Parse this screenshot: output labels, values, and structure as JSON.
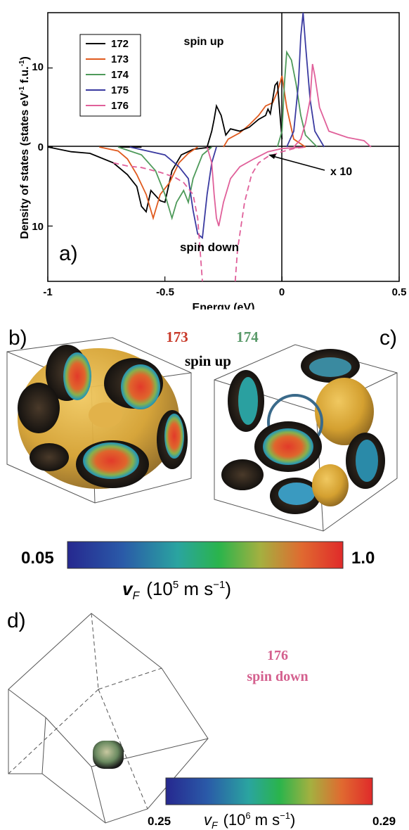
{
  "panel_a": {
    "label": "a)",
    "ylabel": "Density of states (states eV",
    "ylabel_sup1": "-1",
    "ylabel_mid": " f.u.",
    "ylabel_sup2": "-1",
    "ylabel_end": ")",
    "xlabel": "Energy (eV)",
    "annot_up": "spin up",
    "annot_down": "spin down",
    "annot_x10": "x 10"
  },
  "chart_data": {
    "type": "line",
    "xlabel": "Energy (eV)",
    "ylabel": "Density of states (states eV-1 f.u.-1)",
    "xlim": [
      -1,
      0.5
    ],
    "ylim": [
      -17,
      17
    ],
    "x_ticks": [
      "-1",
      "-0.5",
      "0",
      "0.5"
    ],
    "x_tick_values": [
      -1,
      -0.5,
      0,
      0.5
    ],
    "y_ticks": [
      "10",
      "0",
      "10"
    ],
    "y_tick_values": [
      10,
      0,
      -10
    ],
    "legend": "top-left",
    "colors": {
      "172": "#000000",
      "173": "#e05a1e",
      "174": "#4e9a5a",
      "175": "#3a3aa0",
      "176": "#e0609a"
    },
    "series": [
      {
        "name": "172",
        "color": "#000000",
        "dashed": false,
        "points": [
          [
            -1,
            0
          ],
          [
            -0.9,
            -0.6
          ],
          [
            -0.82,
            -0.8
          ],
          [
            -0.72,
            -2
          ],
          [
            -0.66,
            -3.5
          ],
          [
            -0.62,
            -5
          ],
          [
            -0.6,
            -7.5
          ],
          [
            -0.58,
            -8.2
          ],
          [
            -0.56,
            -5.5
          ],
          [
            -0.52,
            -6.8
          ],
          [
            -0.5,
            -7
          ],
          [
            -0.47,
            -3
          ],
          [
            -0.43,
            -1
          ],
          [
            -0.38,
            -0.3
          ],
          [
            -0.3,
            0
          ]
        ]
      },
      {
        "name": "172",
        "color": "#000000",
        "dashed": false,
        "points": [
          [
            -0.6,
            0
          ],
          [
            -0.7,
            0
          ]
        ]
      },
      {
        "name": "172",
        "color": "#000000",
        "dashed": false,
        "points": [
          [
            -0.6,
            0
          ],
          [
            -0.62,
            0
          ]
        ]
      },
      {
        "name": "173",
        "color": "#e05a1e",
        "dashed": false,
        "points": [
          [
            -0.78,
            0
          ],
          [
            -0.7,
            -0.5
          ],
          [
            -0.66,
            -1.5
          ],
          [
            -0.62,
            -3.5
          ],
          [
            -0.58,
            -6
          ],
          [
            -0.55,
            -9
          ],
          [
            -0.52,
            -6
          ],
          [
            -0.48,
            -4.5
          ],
          [
            -0.44,
            -2
          ],
          [
            -0.4,
            -0.8
          ],
          [
            -0.36,
            0
          ]
        ]
      },
      {
        "name": "174",
        "color": "#4e9a5a",
        "dashed": false,
        "points": [
          [
            -0.7,
            0
          ],
          [
            -0.6,
            -1
          ],
          [
            -0.54,
            -3
          ],
          [
            -0.5,
            -6
          ],
          [
            -0.47,
            -9
          ],
          [
            -0.45,
            -7
          ],
          [
            -0.42,
            -5.5
          ],
          [
            -0.4,
            -7
          ],
          [
            -0.38,
            -4
          ],
          [
            -0.34,
            -1
          ],
          [
            -0.3,
            0
          ]
        ]
      },
      {
        "name": "175",
        "color": "#3a3aa0",
        "dashed": false,
        "points": [
          [
            -0.65,
            0
          ],
          [
            -0.5,
            -1
          ],
          [
            -0.44,
            -2.5
          ],
          [
            -0.4,
            -4
          ],
          [
            -0.38,
            -8
          ],
          [
            -0.36,
            -11
          ],
          [
            -0.34,
            -11.5
          ],
          [
            -0.32,
            -6
          ],
          [
            -0.3,
            -2
          ],
          [
            -0.28,
            0
          ]
        ]
      },
      {
        "name": "176",
        "color": "#e0609a",
        "dashed": false,
        "points": [
          [
            -0.32,
            0
          ],
          [
            -0.3,
            -2
          ],
          [
            -0.29,
            -6
          ],
          [
            -0.28,
            -9
          ],
          [
            -0.27,
            -10
          ],
          [
            -0.25,
            -7
          ],
          [
            -0.22,
            -4
          ],
          [
            -0.18,
            -2.5
          ],
          [
            -0.12,
            -1.5
          ],
          [
            -0.06,
            -0.6
          ],
          [
            0,
            -0.2
          ],
          [
            0.1,
            0
          ]
        ]
      },
      {
        "name": "173",
        "color": "#e05a1e",
        "dashed": false,
        "points": [
          [
            -0.25,
            0
          ],
          [
            -0.23,
            1
          ],
          [
            -0.18,
            1.8
          ],
          [
            -0.14,
            2.8
          ],
          [
            -0.1,
            4
          ],
          [
            -0.07,
            5.2
          ],
          [
            -0.04,
            5.6
          ],
          [
            -0.02,
            7
          ],
          [
            0,
            9
          ],
          [
            0.02,
            5
          ],
          [
            0.05,
            1
          ],
          [
            0.1,
            0
          ]
        ]
      },
      {
        "name": "172",
        "color": "#000000",
        "dashed": false,
        "points": [
          [
            -0.32,
            0
          ],
          [
            -0.3,
            2
          ],
          [
            -0.29,
            3.5
          ],
          [
            -0.28,
            5.2
          ],
          [
            -0.26,
            4
          ],
          [
            -0.24,
            1.5
          ],
          [
            -0.22,
            2.3
          ],
          [
            -0.18,
            2
          ],
          [
            -0.14,
            2.5
          ],
          [
            -0.1,
            3.5
          ],
          [
            -0.07,
            4
          ],
          [
            -0.06,
            4.8
          ],
          [
            -0.05,
            4.2
          ],
          [
            -0.04,
            6
          ],
          [
            -0.03,
            7.8
          ],
          [
            -0.02,
            8.2
          ],
          [
            -0.01,
            4.5
          ],
          [
            0,
            1
          ]
        ]
      },
      {
        "name": "174",
        "color": "#4e9a5a",
        "dashed": false,
        "points": [
          [
            -0.02,
            0
          ],
          [
            0,
            2
          ],
          [
            0.01,
            8
          ],
          [
            0.02,
            12
          ],
          [
            0.04,
            11
          ],
          [
            0.06,
            8
          ],
          [
            0.08,
            4
          ],
          [
            0.1,
            1.5
          ],
          [
            0.15,
            0
          ]
        ]
      },
      {
        "name": "175",
        "color": "#3a3aa0",
        "dashed": false,
        "points": [
          [
            0.02,
            0
          ],
          [
            0.05,
            2
          ],
          [
            0.07,
            8
          ],
          [
            0.08,
            14
          ],
          [
            0.09,
            17
          ],
          [
            0.1,
            13
          ],
          [
            0.12,
            6
          ],
          [
            0.14,
            2
          ],
          [
            0.18,
            0
          ]
        ]
      },
      {
        "name": "176",
        "color": "#e0609a",
        "dashed": false,
        "points": [
          [
            0.05,
            0
          ],
          [
            0.08,
            1
          ],
          [
            0.1,
            3
          ],
          [
            0.12,
            6
          ],
          [
            0.13,
            10.5
          ],
          [
            0.14,
            9
          ],
          [
            0.16,
            5
          ],
          [
            0.2,
            2
          ],
          [
            0.28,
            1.2
          ],
          [
            0.35,
            0.8
          ],
          [
            0.38,
            0
          ]
        ]
      },
      {
        "name": "176",
        "color": "#e0609a",
        "dashed": true,
        "points": [
          [
            -0.72,
            -2
          ],
          [
            -0.66,
            -2.4
          ],
          [
            -0.6,
            -2.6
          ],
          [
            -0.52,
            -3.2
          ],
          [
            -0.46,
            -3.8
          ],
          [
            -0.42,
            -4.5
          ],
          [
            -0.38,
            -6
          ],
          [
            -0.36,
            -9
          ],
          [
            -0.35,
            -13
          ],
          [
            -0.34,
            -17
          ]
        ]
      },
      {
        "name": "176",
        "color": "#e0609a",
        "dashed": true,
        "points": [
          [
            -0.2,
            -17
          ],
          [
            -0.19,
            -13
          ],
          [
            -0.16,
            -7
          ],
          [
            -0.13,
            -3.5
          ],
          [
            -0.1,
            -2
          ],
          [
            -0.06,
            -1.2
          ],
          [
            0,
            -0.6
          ],
          [
            0.05,
            -0.2
          ],
          [
            0.1,
            0
          ]
        ]
      }
    ]
  },
  "legend": {
    "entries": [
      {
        "label": "172",
        "color": "#000000"
      },
      {
        "label": "173",
        "color": "#e05a1e"
      },
      {
        "label": "174",
        "color": "#4e9a5a"
      },
      {
        "label": "175",
        "color": "#3a3aa0"
      },
      {
        "label": "176",
        "color": "#e0609a"
      }
    ]
  },
  "panel_bc": {
    "label_b": "b)",
    "label_c": "c)",
    "num_173": "173",
    "num_174": "174",
    "spin_up": "spin up",
    "colorbar_min": "0.05",
    "colorbar_max": "1.0",
    "colorbar_var": "v",
    "colorbar_sub": "F",
    "colorbar_units": "(10",
    "colorbar_exp": "5",
    "colorbar_units2": " m s",
    "colorbar_exp2": "−1",
    "colorbar_close": ")"
  },
  "panel_d": {
    "label": "d)",
    "num_176": "176",
    "spin_down": "spin down",
    "colorbar_min": "0.25",
    "colorbar_max": "0.29",
    "colorbar_var": "v",
    "colorbar_sub": "F",
    "colorbar_units": "(10",
    "colorbar_exp": "6",
    "colorbar_units2": " m s",
    "colorbar_exp2": "−1",
    "colorbar_close": ")"
  },
  "colors": {
    "colormap": [
      "#2a2a9a",
      "#2a6aa8",
      "#2aa88a",
      "#3ab84a",
      "#c8b040",
      "#e06a30",
      "#e02a2a"
    ],
    "gold": "#d9a83a",
    "pink_label": "#d4608e",
    "red_label": "#c83a2a",
    "green_label": "#5a9a6a"
  }
}
